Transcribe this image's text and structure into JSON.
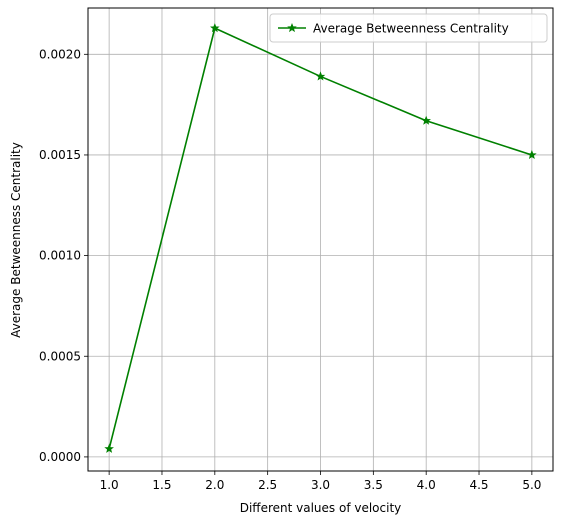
{
  "chart_data": {
    "type": "line",
    "title": "",
    "xlabel": "Different values of velocity",
    "ylabel": "Average Betweenness Centrality",
    "xlim": [
      0.8,
      5.2
    ],
    "ylim": [
      -7e-05,
      0.00223
    ],
    "x_ticks": [
      1.0,
      1.5,
      2.0,
      2.5,
      3.0,
      3.5,
      4.0,
      4.5,
      5.0
    ],
    "x_tick_labels": [
      "1.0",
      "1.5",
      "2.0",
      "2.5",
      "3.0",
      "3.5",
      "4.0",
      "4.5",
      "5.0"
    ],
    "y_ticks": [
      0.0,
      0.0005,
      0.001,
      0.0015,
      0.002
    ],
    "y_tick_labels": [
      "0.0000",
      "0.0005",
      "0.0010",
      "0.0015",
      "0.0020"
    ],
    "grid": true,
    "legend_position": "top-right",
    "series": [
      {
        "name": "Average Betweenness Centrality",
        "color": "#008000",
        "marker": "star",
        "x": [
          1.0,
          2.0,
          3.0,
          4.0,
          5.0
        ],
        "y": [
          4e-05,
          0.00213,
          0.00189,
          0.00167,
          0.0015
        ]
      }
    ]
  }
}
